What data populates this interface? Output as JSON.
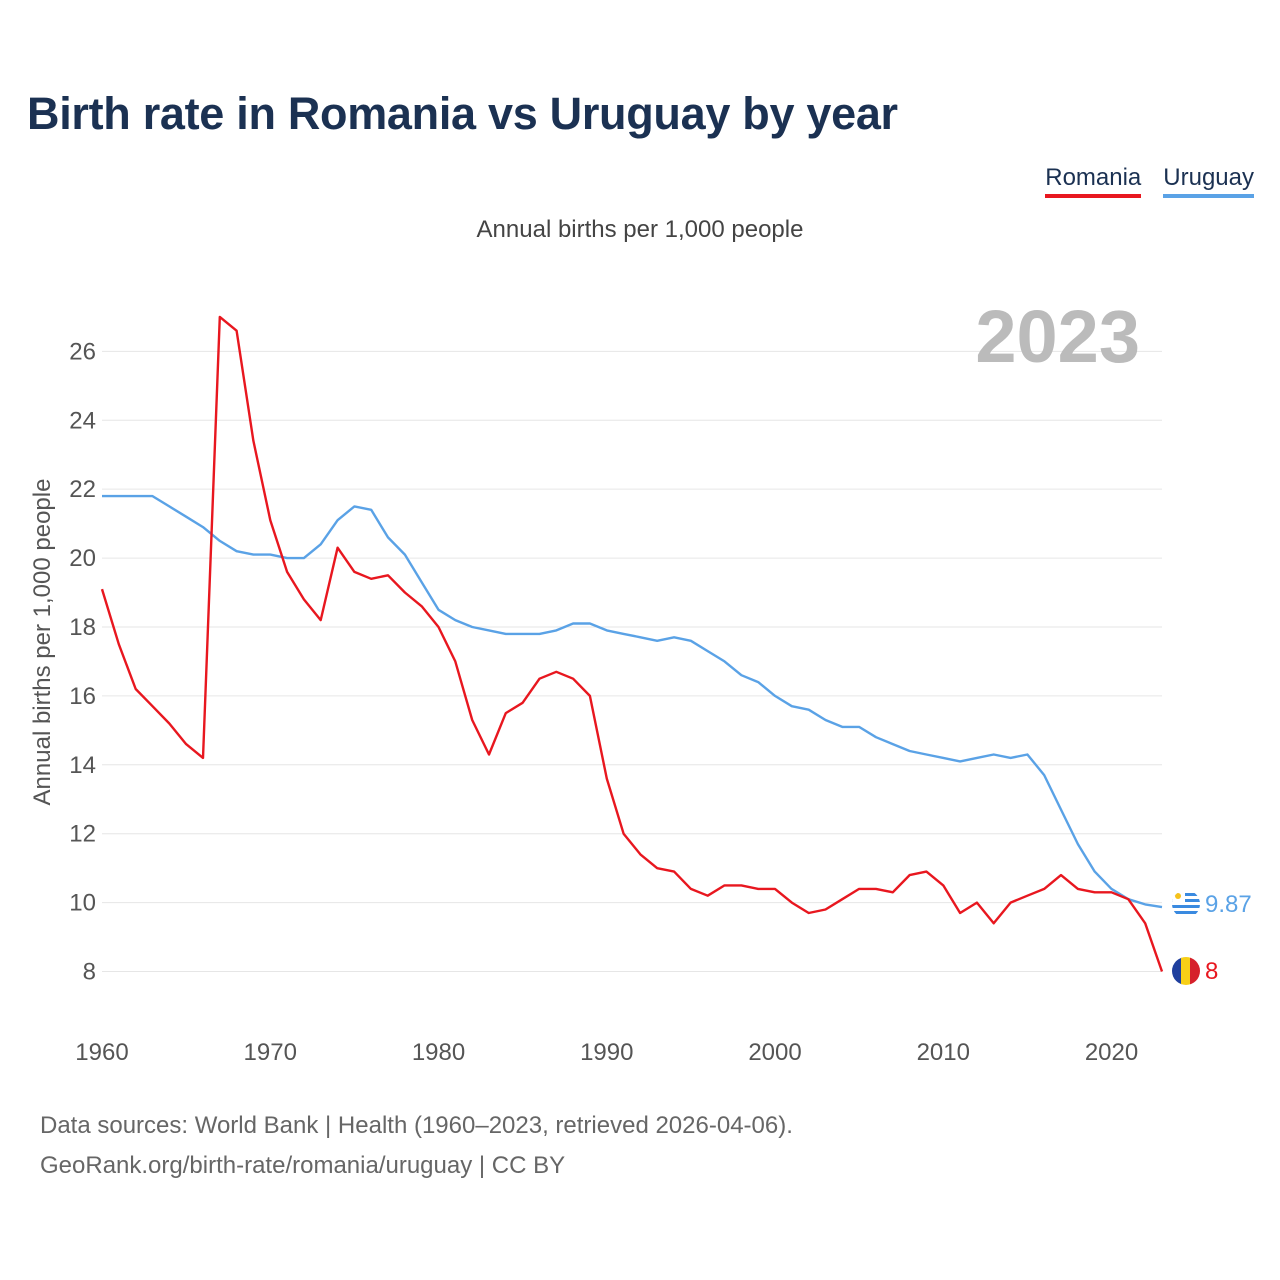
{
  "title": "Birth rate in Romania vs Uruguay by year",
  "subtitle": "Annual births per 1,000 people",
  "year_label": "2023",
  "legend": [
    {
      "name": "Romania",
      "color": "#e8171f"
    },
    {
      "name": "Uruguay",
      "color": "#5aa2e6"
    }
  ],
  "end_labels": {
    "romania": "8",
    "uruguay": "9.87"
  },
  "source_line1": "Data sources: World Bank | Health (1960–2023, retrieved 2026-04-06).",
  "source_line2": "GeoRank.org/birth-rate/romania/uruguay | CC BY",
  "chart_data": {
    "type": "line",
    "title": "Birth rate in Romania vs Uruguay by year",
    "ylabel": "Annual births per 1,000 people",
    "xlabel": "",
    "xlim": [
      1960,
      2023
    ],
    "ylim": [
      7,
      27.2
    ],
    "yticks": [
      8,
      10,
      12,
      14,
      16,
      18,
      20,
      22,
      24,
      26
    ],
    "xticks": [
      1960,
      1970,
      1980,
      1990,
      2000,
      2010,
      2020
    ],
    "x": [
      1960,
      1961,
      1962,
      1963,
      1964,
      1965,
      1966,
      1967,
      1968,
      1969,
      1970,
      1971,
      1972,
      1973,
      1974,
      1975,
      1976,
      1977,
      1978,
      1979,
      1980,
      1981,
      1982,
      1983,
      1984,
      1985,
      1986,
      1987,
      1988,
      1989,
      1990,
      1991,
      1992,
      1993,
      1994,
      1995,
      1996,
      1997,
      1998,
      1999,
      2000,
      2001,
      2002,
      2003,
      2004,
      2005,
      2006,
      2007,
      2008,
      2009,
      2010,
      2011,
      2012,
      2013,
      2014,
      2015,
      2016,
      2017,
      2018,
      2019,
      2020,
      2021,
      2022,
      2023
    ],
    "series": [
      {
        "name": "Romania",
        "color": "#e8171f",
        "values": [
          19.1,
          17.5,
          16.2,
          15.7,
          15.2,
          14.6,
          14.2,
          27.0,
          26.6,
          23.4,
          21.1,
          19.6,
          18.8,
          18.2,
          20.3,
          19.6,
          19.4,
          19.5,
          19.0,
          18.6,
          18.0,
          17.0,
          15.3,
          14.3,
          15.5,
          15.8,
          16.5,
          16.7,
          16.5,
          16.0,
          13.6,
          12.0,
          11.4,
          11.0,
          10.9,
          10.4,
          10.2,
          10.5,
          10.5,
          10.4,
          10.4,
          10.0,
          9.7,
          9.8,
          10.1,
          10.4,
          10.4,
          10.3,
          10.8,
          10.9,
          10.5,
          9.7,
          10.0,
          9.4,
          10.0,
          10.2,
          10.4,
          10.8,
          10.4,
          10.3,
          10.3,
          10.1,
          9.4,
          8.0
        ]
      },
      {
        "name": "Uruguay",
        "color": "#5aa2e6",
        "values": [
          21.8,
          21.8,
          21.8,
          21.8,
          21.5,
          21.2,
          20.9,
          20.5,
          20.2,
          20.1,
          20.1,
          20.0,
          20.0,
          20.4,
          21.1,
          21.5,
          21.4,
          20.6,
          20.1,
          19.3,
          18.5,
          18.2,
          18.0,
          17.9,
          17.8,
          17.8,
          17.8,
          17.9,
          18.1,
          18.1,
          17.9,
          17.8,
          17.7,
          17.6,
          17.7,
          17.6,
          17.3,
          17.0,
          16.6,
          16.4,
          16.0,
          15.7,
          15.6,
          15.3,
          15.1,
          15.1,
          14.8,
          14.6,
          14.4,
          14.3,
          14.2,
          14.1,
          14.2,
          14.3,
          14.2,
          14.3,
          13.7,
          12.7,
          11.7,
          10.9,
          10.4,
          10.1,
          9.95,
          9.87
        ]
      }
    ]
  }
}
